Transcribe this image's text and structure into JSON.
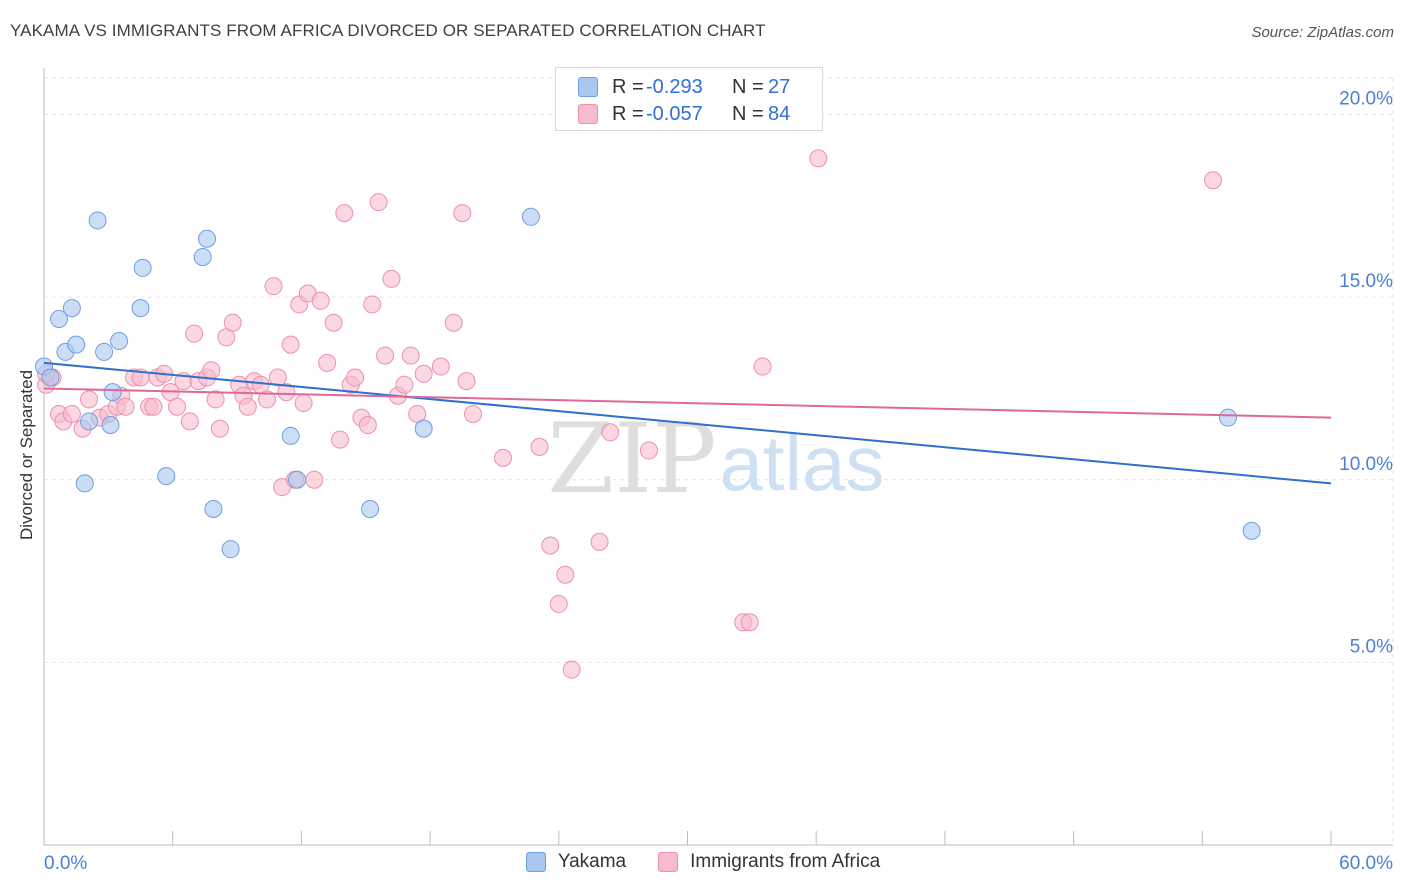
{
  "title": "YAKAMA VS IMMIGRANTS FROM AFRICA DIVORCED OR SEPARATED CORRELATION CHART",
  "source": "Source: ZipAtlas.com",
  "watermark": {
    "zip": "ZIP",
    "atlas": "atlas"
  },
  "legend_top": {
    "rows": [
      {
        "r_label": "R =",
        "r_value": "-0.293",
        "n_label": "N =",
        "n_value": "27"
      },
      {
        "r_label": "R =",
        "r_value": "-0.057",
        "n_label": "N =",
        "n_value": "84"
      }
    ]
  },
  "colors": {
    "blue_fill": "#a9c8f0",
    "blue_stroke": "#6f9fe0",
    "blue_line": "#2e6fd0",
    "pink_fill": "#f6bccd",
    "pink_stroke": "#ec91ac",
    "pink_line": "#e0679a",
    "tick_label": "#4a7fd4",
    "grid": "#e3e3e3"
  },
  "chart_data": {
    "type": "scatter",
    "title": "YAKAMA VS IMMIGRANTS FROM AFRICA DIVORCED OR SEPARATED CORRELATION CHART",
    "xlabel": "",
    "ylabel": "Divorced or Separated",
    "xlim": [
      0,
      60
    ],
    "ylim": [
      0,
      21
    ],
    "x_tick_labels": [
      "0.0%",
      "60.0%"
    ],
    "y_ticks": [
      5,
      10,
      15,
      20
    ],
    "y_tick_labels": [
      "5.0%",
      "10.0%",
      "15.0%",
      "20.0%"
    ],
    "grid": true,
    "legend_position": "bottom",
    "series": [
      {
        "name": "Yakama",
        "trend": [
          [
            0,
            13.2
          ],
          [
            60,
            9.9
          ]
        ],
        "points": [
          [
            0.0,
            13.1
          ],
          [
            0.3,
            12.8
          ],
          [
            0.7,
            14.4
          ],
          [
            1.0,
            13.5
          ],
          [
            1.3,
            14.7
          ],
          [
            1.5,
            13.7
          ],
          [
            1.9,
            9.9
          ],
          [
            2.1,
            11.6
          ],
          [
            2.5,
            17.1
          ],
          [
            2.8,
            13.5
          ],
          [
            3.1,
            11.5
          ],
          [
            3.2,
            12.4
          ],
          [
            3.5,
            13.8
          ],
          [
            4.5,
            14.7
          ],
          [
            4.6,
            15.8
          ],
          [
            5.7,
            10.1
          ],
          [
            7.4,
            16.1
          ],
          [
            7.6,
            16.6
          ],
          [
            7.9,
            9.2
          ],
          [
            8.7,
            8.1
          ],
          [
            11.5,
            11.2
          ],
          [
            11.8,
            10.0
          ],
          [
            15.2,
            9.2
          ],
          [
            17.7,
            11.4
          ],
          [
            22.7,
            17.2
          ],
          [
            55.2,
            11.7
          ],
          [
            56.3,
            8.6
          ]
        ]
      },
      {
        "name": "Immigrants from Africa",
        "trend": [
          [
            0,
            12.5
          ],
          [
            60,
            11.7
          ]
        ],
        "points": [
          [
            0.1,
            12.6
          ],
          [
            0.4,
            12.8
          ],
          [
            0.7,
            11.8
          ],
          [
            0.9,
            11.6
          ],
          [
            1.3,
            11.8
          ],
          [
            1.8,
            11.4
          ],
          [
            2.1,
            12.2
          ],
          [
            2.6,
            11.7
          ],
          [
            3.0,
            11.8
          ],
          [
            3.4,
            12.0
          ],
          [
            3.6,
            12.3
          ],
          [
            3.8,
            12.0
          ],
          [
            4.2,
            12.8
          ],
          [
            4.5,
            12.8
          ],
          [
            4.9,
            12.0
          ],
          [
            5.1,
            12.0
          ],
          [
            5.3,
            12.8
          ],
          [
            5.6,
            12.9
          ],
          [
            5.9,
            12.4
          ],
          [
            6.2,
            12.0
          ],
          [
            6.5,
            12.7
          ],
          [
            6.8,
            11.6
          ],
          [
            7.0,
            14.0
          ],
          [
            7.2,
            12.7
          ],
          [
            7.6,
            12.8
          ],
          [
            7.8,
            13.0
          ],
          [
            8.0,
            12.2
          ],
          [
            8.2,
            11.4
          ],
          [
            8.5,
            13.9
          ],
          [
            8.8,
            14.3
          ],
          [
            9.1,
            12.6
          ],
          [
            9.3,
            12.3
          ],
          [
            9.5,
            12.0
          ],
          [
            9.8,
            12.7
          ],
          [
            10.1,
            12.6
          ],
          [
            10.4,
            12.2
          ],
          [
            10.7,
            15.3
          ],
          [
            10.9,
            12.8
          ],
          [
            11.1,
            9.8
          ],
          [
            11.3,
            12.4
          ],
          [
            11.5,
            13.7
          ],
          [
            11.7,
            10.0
          ],
          [
            11.9,
            14.8
          ],
          [
            12.1,
            12.1
          ],
          [
            12.3,
            15.1
          ],
          [
            12.6,
            10.0
          ],
          [
            12.9,
            14.9
          ],
          [
            13.2,
            13.2
          ],
          [
            13.5,
            14.3
          ],
          [
            13.8,
            11.1
          ],
          [
            14.0,
            17.3
          ],
          [
            14.3,
            12.6
          ],
          [
            14.5,
            12.8
          ],
          [
            14.8,
            11.7
          ],
          [
            15.1,
            11.5
          ],
          [
            15.3,
            14.8
          ],
          [
            15.6,
            17.6
          ],
          [
            15.9,
            13.4
          ],
          [
            16.2,
            15.5
          ],
          [
            16.5,
            12.3
          ],
          [
            16.8,
            12.6
          ],
          [
            17.1,
            13.4
          ],
          [
            17.4,
            11.8
          ],
          [
            17.7,
            12.9
          ],
          [
            18.5,
            13.1
          ],
          [
            19.1,
            14.3
          ],
          [
            19.5,
            17.3
          ],
          [
            19.7,
            12.7
          ],
          [
            20.0,
            11.8
          ],
          [
            21.4,
            10.6
          ],
          [
            23.1,
            10.9
          ],
          [
            23.6,
            8.2
          ],
          [
            24.0,
            6.6
          ],
          [
            24.3,
            7.4
          ],
          [
            24.6,
            4.8
          ],
          [
            25.9,
            8.3
          ],
          [
            26.4,
            11.3
          ],
          [
            28.2,
            10.8
          ],
          [
            32.6,
            6.1
          ],
          [
            32.9,
            6.1
          ],
          [
            33.5,
            13.1
          ],
          [
            36.1,
            18.8
          ],
          [
            54.5,
            18.2
          ],
          [
            0.1,
            12.9
          ]
        ]
      }
    ]
  },
  "legend_bottom": [
    {
      "label": "Yakama"
    },
    {
      "label": "Immigrants from Africa"
    }
  ]
}
